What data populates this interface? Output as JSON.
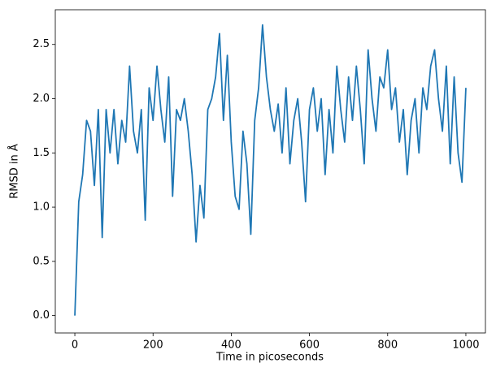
{
  "chart_data": {
    "type": "line",
    "xlabel": "Time in picoseconds",
    "ylabel": "RMSD in Å",
    "x": [
      0,
      10,
      20,
      30,
      40,
      50,
      60,
      70,
      80,
      90,
      100,
      110,
      120,
      130,
      140,
      150,
      160,
      170,
      180,
      190,
      200,
      210,
      220,
      230,
      240,
      250,
      260,
      270,
      280,
      290,
      300,
      310,
      320,
      330,
      340,
      350,
      360,
      370,
      380,
      390,
      400,
      410,
      420,
      430,
      440,
      450,
      460,
      470,
      480,
      490,
      500,
      510,
      520,
      530,
      540,
      550,
      560,
      570,
      580,
      590,
      600,
      610,
      620,
      630,
      640,
      650,
      660,
      670,
      680,
      690,
      700,
      710,
      720,
      730,
      740,
      750,
      760,
      770,
      780,
      790,
      800,
      810,
      820,
      830,
      840,
      850,
      860,
      870,
      880,
      890,
      900,
      910,
      920,
      930,
      940,
      950,
      960,
      970,
      980,
      990,
      1000
    ],
    "series": [
      {
        "color": "#1f77b4",
        "values": [
          0.0,
          1.05,
          1.3,
          1.8,
          1.7,
          1.2,
          1.9,
          0.72,
          1.9,
          1.5,
          1.9,
          1.4,
          1.8,
          1.6,
          2.3,
          1.7,
          1.5,
          1.9,
          0.88,
          2.1,
          1.8,
          2.3,
          1.9,
          1.6,
          2.2,
          1.1,
          1.9,
          1.8,
          2.0,
          1.7,
          1.3,
          0.68,
          1.2,
          0.9,
          1.9,
          2.0,
          2.2,
          2.6,
          1.8,
          2.4,
          1.6,
          1.1,
          0.98,
          1.7,
          1.4,
          0.75,
          1.8,
          2.1,
          2.68,
          2.2,
          1.9,
          1.7,
          1.95,
          1.5,
          2.1,
          1.4,
          1.8,
          2.0,
          1.6,
          1.05,
          1.9,
          2.1,
          1.7,
          2.0,
          1.3,
          1.9,
          1.5,
          2.3,
          1.9,
          1.6,
          2.2,
          1.8,
          2.3,
          1.9,
          1.4,
          2.45,
          2.0,
          1.7,
          2.2,
          2.1,
          2.45,
          1.9,
          2.1,
          1.6,
          1.9,
          1.3,
          1.8,
          2.0,
          1.5,
          2.1,
          1.9,
          2.3,
          2.45,
          2.0,
          1.7,
          2.3,
          1.4,
          2.2,
          1.5,
          1.23,
          2.1
        ]
      }
    ],
    "xlim": [
      -50,
      1050
    ],
    "ylim": [
      -0.16,
      2.82
    ],
    "xticks": [
      0,
      200,
      400,
      600,
      800,
      1000
    ],
    "yticks": [
      {
        "value": 0,
        "label": "0.0"
      },
      0.5,
      {
        "value": 1,
        "label": "1.0"
      },
      1.5,
      {
        "value": 2,
        "label": "2.0"
      },
      2.5
    ]
  }
}
